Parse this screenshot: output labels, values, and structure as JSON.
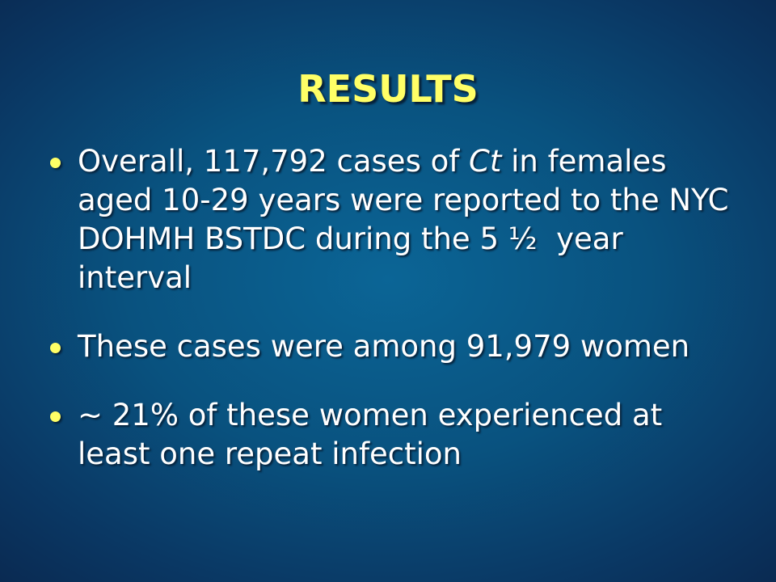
{
  "slide": {
    "title": "RESULTS",
    "bullets": [
      {
        "parts": [
          "Overall, 117,792 cases of ",
          "Ct",
          " in females aged 10-29 years were reported to the NYC DOHMH BSTDC during the 5 ½  year interval"
        ]
      },
      {
        "parts": [
          "These cases were among 91,979 women"
        ]
      },
      {
        "parts": [
          "~ 21% of these women experienced at least one repeat infection"
        ]
      }
    ]
  }
}
